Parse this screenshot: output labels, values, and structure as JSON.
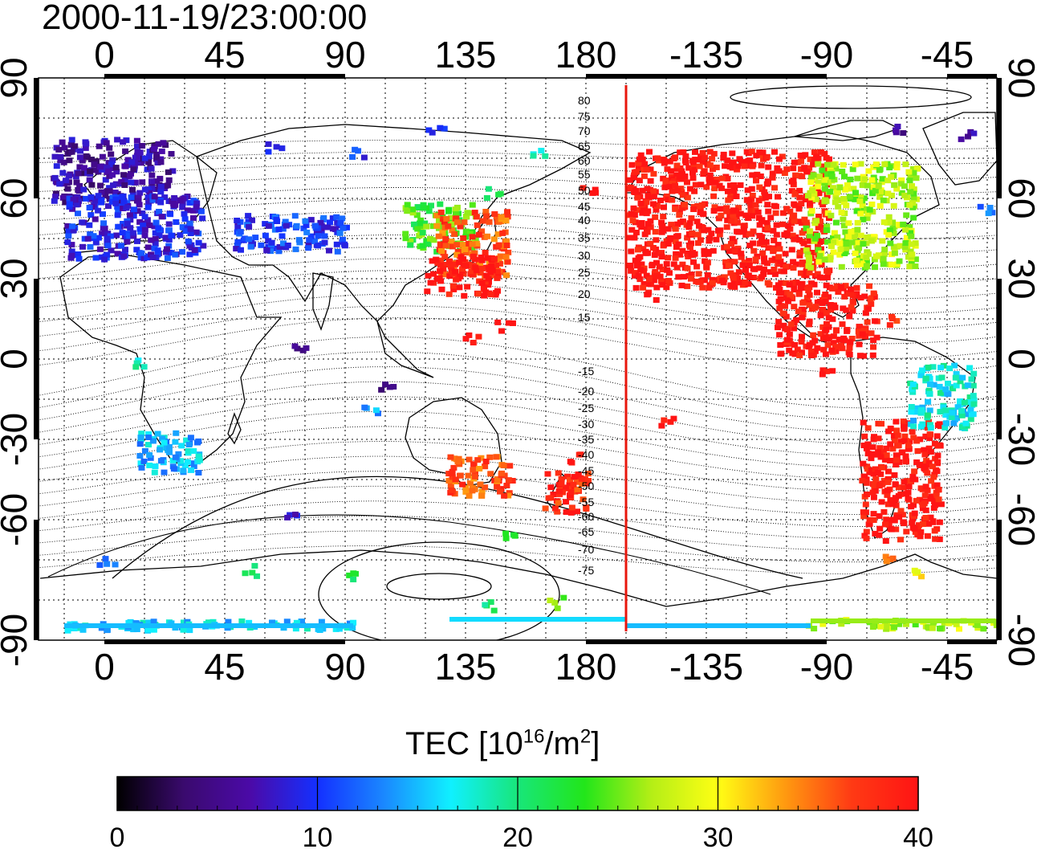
{
  "timestamp": "2000-11-19/23:00:00",
  "map": {
    "projection": "cylindrical",
    "lon_top_labels": [
      "0",
      "45",
      "90",
      "135",
      "180",
      "-135",
      "-90",
      "-45"
    ],
    "lon_bottom_labels": [
      "0",
      "45",
      "90",
      "135",
      "180",
      "-135",
      "-90",
      "-45"
    ],
    "lat_left_labels": [
      "90",
      "60",
      "30",
      "0",
      "-30",
      "-60",
      "-90"
    ],
    "lat_right_labels": [
      "90",
      "60",
      "30",
      "0",
      "-30",
      "-60",
      "-90"
    ],
    "contour_labels_north": [
      "80",
      "75",
      "70",
      "65",
      "60",
      "55",
      "50",
      "45",
      "40",
      "35",
      "30",
      "25",
      "20",
      "15"
    ],
    "contour_labels_south": [
      "-15",
      "-20",
      "-25",
      "-30",
      "-35",
      "-40",
      "-45",
      "-50",
      "-55",
      "-60",
      "-65",
      "-70",
      "-75"
    ],
    "marker_line": {
      "lon": 195,
      "color": "#e8160c"
    }
  },
  "colorbar": {
    "title_prefix": "TEC  [10",
    "title_exp1": "16",
    "title_mid": "/m",
    "title_exp2": "2",
    "title_suffix": "]",
    "ticks": [
      "0",
      "10",
      "20",
      "30",
      "40"
    ],
    "min": 0,
    "max": 40,
    "colors": [
      "#000000",
      "#3a0a6e",
      "#4b0aa8",
      "#1430ff",
      "#1a88ff",
      "#10f0ff",
      "#18e67a",
      "#22e61a",
      "#b4ee16",
      "#ffff14",
      "#ff9a10",
      "#ff3a14",
      "#ff1414"
    ]
  },
  "tec_regions": [
    {
      "name": "europe-northwest",
      "tec": 6
    },
    {
      "name": "europe-central",
      "tec": 9
    },
    {
      "name": "asia-central",
      "tec": 10
    },
    {
      "name": "east-asia-north",
      "tec": 24
    },
    {
      "name": "japan",
      "tec": 36
    },
    {
      "name": "china-south",
      "tec": 40
    },
    {
      "name": "north-america-west",
      "tec": 40
    },
    {
      "name": "north-america-east",
      "tec": 27
    },
    {
      "name": "central-america",
      "tec": 40
    },
    {
      "name": "south-america",
      "tec": 40
    },
    {
      "name": "south-america-east",
      "tec": 17
    },
    {
      "name": "australia-southeast",
      "tec": 36
    },
    {
      "name": "new-zealand",
      "tec": 38
    },
    {
      "name": "southern-africa",
      "tec": 15
    },
    {
      "name": "antarctica-east",
      "tec": 16
    },
    {
      "name": "antarctica-west",
      "tec": 27
    }
  ]
}
